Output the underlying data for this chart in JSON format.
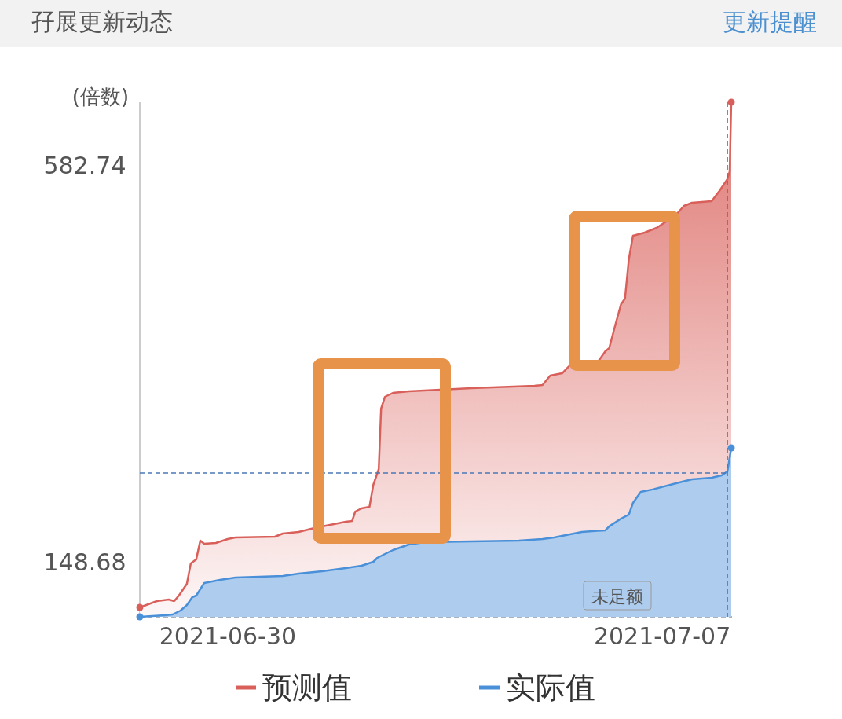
{
  "chart_data": {
    "type": "area",
    "title": "孖展更新动态",
    "ylabel": "(倍数)",
    "annotations": [
      "更新提醒",
      "未足额"
    ],
    "xlim": [
      "2021-06-28T14:00",
      "2021-07-08T03:00"
    ],
    "xticks": [
      {
        "value": "2021-06-30",
        "label": "2021-06-30"
      },
      {
        "value": "2021-07-07",
        "label": "2021-07-07"
      }
    ],
    "ylim": [
      88.5,
      651.5
    ],
    "yticks": [
      148.68,
      582.74
    ],
    "grid": false,
    "legend": "bottom",
    "ref_lines": [
      {
        "axis": "y",
        "value": 245.8,
        "color": "#4a78b8",
        "line_style": "dashed"
      },
      {
        "axis": "x",
        "value": "2021-07-08T01:12",
        "color": "#4a78b8",
        "line_style": "dashed"
      }
    ],
    "series": [
      {
        "name": "预测值",
        "color": "#d9605a",
        "x": [
          "2021-06-28T14:00",
          "2021-06-28T20:36",
          "2021-06-29T01:12",
          "2021-06-29T03:18",
          "2021-06-29T05:06",
          "2021-06-29T08:12",
          "2021-06-29T09:42",
          "2021-06-29T11:48",
          "2021-06-29T13:24",
          "2021-06-29T14:54",
          "2021-06-29T19:24",
          "2021-06-30T00:00",
          "2021-06-30T03:00",
          "2021-06-30T18:15",
          "2021-06-30T21:18",
          "2021-07-01T03:24",
          "2021-07-01T09:30",
          "2021-07-01T14:00",
          "2021-07-01T21:36",
          "2021-07-02T00:06",
          "2021-07-02T01:18",
          "2021-07-02T03:42",
          "2021-07-02T06:48",
          "2021-07-02T08:18",
          "2021-07-02T10:24",
          "2021-07-02T11:18",
          "2021-07-02T12:48",
          "2021-07-02T15:54",
          "2021-07-02T22:00",
          "2021-07-03T10:06",
          "2021-07-03T22:18",
          "2021-07-04T22:36",
          "2021-07-05T01:42",
          "2021-07-05T04:42",
          "2021-07-05T09:18",
          "2021-07-05T12:18",
          "2021-07-05T23:00",
          "2021-07-06T02:00",
          "2021-07-06T03:30",
          "2021-07-06T06:00",
          "2021-07-06T08:06",
          "2021-07-06T09:36",
          "2021-07-06T11:06",
          "2021-07-06T12:42",
          "2021-07-06T17:12",
          "2021-07-06T21:48",
          "2021-07-07T02:24",
          "2021-07-07T05:24",
          "2021-07-07T08:24",
          "2021-07-07T11:30",
          "2021-07-07T19:06",
          "2021-07-07T22:06",
          "2021-07-08T01:12",
          "2021-07-08T02:06",
          "2021-07-08T02:42"
        ],
        "values": [
          98.8,
          105.7,
          107.4,
          105.7,
          111.7,
          124.6,
          147.0,
          151.3,
          171.9,
          168.4,
          169.3,
          173.6,
          175.3,
          176.2,
          179.6,
          181.3,
          185.6,
          188.2,
          192.5,
          193.4,
          203.7,
          207.1,
          208.8,
          232.9,
          250.1,
          316.3,
          329.2,
          333.5,
          335.2,
          336.9,
          338.6,
          341.2,
          342.1,
          352.4,
          355.0,
          363.6,
          367.0,
          379.0,
          382.5,
          409.1,
          430.6,
          436.6,
          479.6,
          505.4,
          508.8,
          514.0,
          522.6,
          528.6,
          538.0,
          541.5,
          543.2,
          554.4,
          567.3,
          575.8,
          651.5
        ]
      },
      {
        "name": "实际值",
        "color": "#4a90d9",
        "x": [
          "2021-06-28T14:00",
          "2021-06-28T23:42",
          "2021-06-29T02:42",
          "2021-06-29T05:45",
          "2021-06-29T08:12",
          "2021-06-29T10:18",
          "2021-06-29T11:48",
          "2021-06-29T14:54",
          "2021-06-29T21:00",
          "2021-06-30T03:00",
          "2021-06-30T21:18",
          "2021-07-01T03:24",
          "2021-07-01T12:30",
          "2021-07-01T21:36",
          "2021-07-02T03:42",
          "2021-07-02T08:18",
          "2021-07-02T09:48",
          "2021-07-02T12:48",
          "2021-07-02T15:54",
          "2021-07-02T22:00",
          "2021-07-03T04:06",
          "2021-07-03T22:18",
          "2021-07-04T16:36",
          "2021-07-05T01:42",
          "2021-07-05T06:12",
          "2021-07-05T10:48",
          "2021-07-05T16:54",
          "2021-07-06T02:00",
          "2021-07-06T03:30",
          "2021-07-06T08:06",
          "2021-07-06T11:06",
          "2021-07-06T12:42",
          "2021-07-06T15:42",
          "2021-07-06T20:18",
          "2021-07-07T05:24",
          "2021-07-07T11:30",
          "2021-07-07T19:06",
          "2021-07-07T23:00",
          "2021-07-08T01:12",
          "2021-07-08T02:42"
        ],
        "values": [
          88.5,
          90.3,
          91.1,
          95.4,
          101.4,
          110.0,
          111.7,
          125.5,
          128.9,
          131.5,
          133.2,
          135.8,
          138.4,
          141.8,
          144.4,
          148.7,
          153.0,
          157.3,
          161.6,
          167.6,
          170.2,
          171.0,
          171.9,
          173.6,
          175.3,
          177.9,
          181.3,
          183.1,
          187.4,
          195.9,
          200.3,
          213.1,
          225.2,
          227.8,
          234.6,
          238.9,
          240.6,
          243.2,
          247.5,
          273.3
        ]
      }
    ]
  }
}
